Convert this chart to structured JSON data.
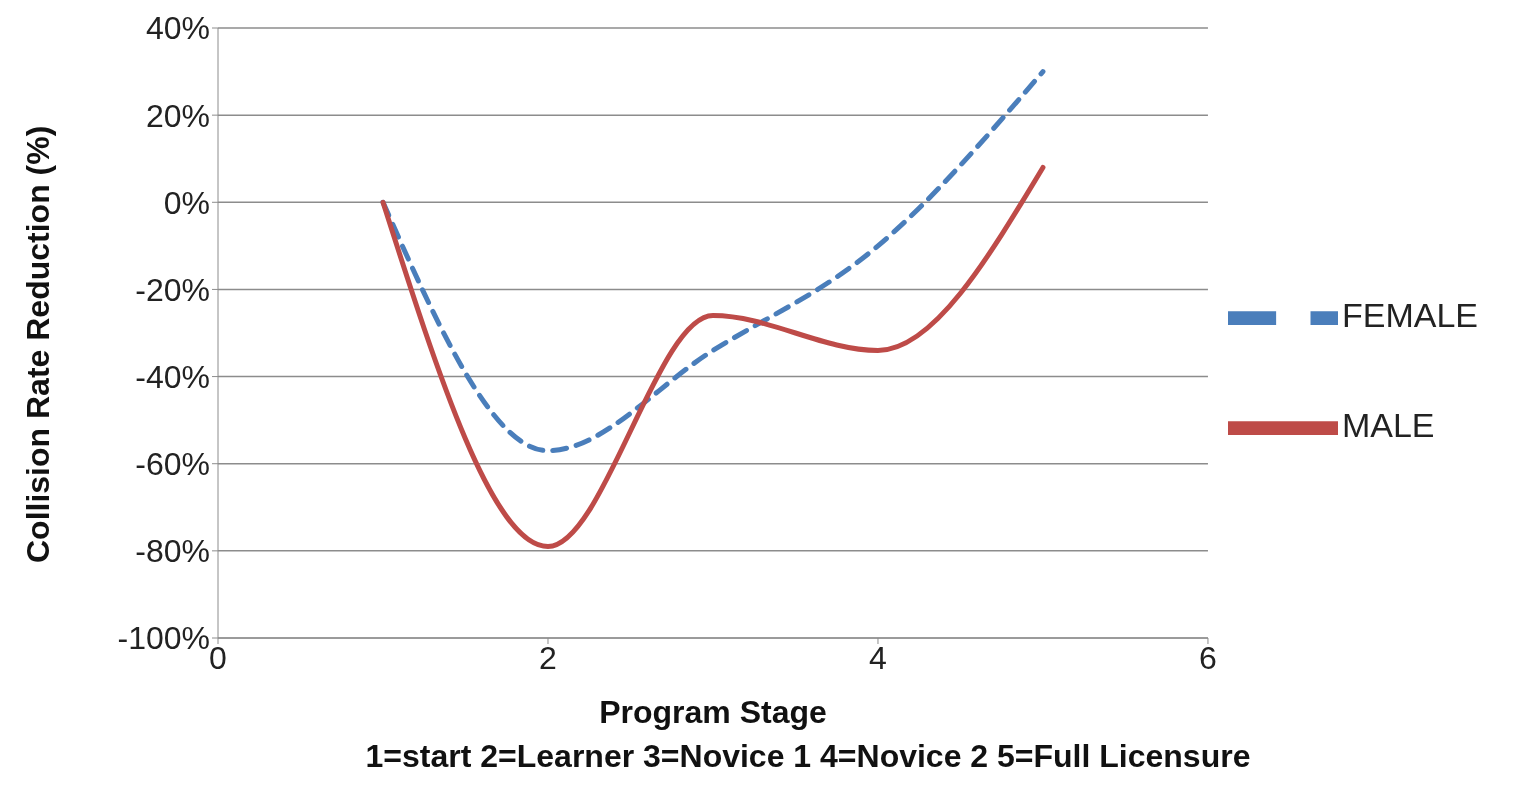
{
  "chart_data": {
    "type": "line",
    "xlabel": "Program Stage",
    "ylabel": "Collision Rate Reduction (%)",
    "x": [
      1,
      2,
      3,
      4,
      5
    ],
    "series": [
      {
        "name": "FEMALE",
        "color": "#4a7ebb",
        "line_style": "dashed",
        "values": [
          0,
          -57,
          -34,
          -10,
          30
        ]
      },
      {
        "name": "MALE",
        "color": "#be4b48",
        "line_style": "solid",
        "values": [
          0,
          -79,
          -26,
          -34,
          8
        ]
      }
    ],
    "xlim": [
      0,
      6
    ],
    "xticks": [
      0,
      2,
      4,
      6
    ],
    "ylim": [
      -100,
      40
    ],
    "yticks": [
      {
        "value": -100,
        "label": "-100%"
      },
      {
        "value": -80,
        "label": "-80%"
      },
      {
        "value": -60,
        "label": "-60%"
      },
      {
        "value": -40,
        "label": "-40%"
      },
      {
        "value": -20,
        "label": "-20%"
      },
      {
        "value": 0,
        "label": "0%"
      },
      {
        "value": 20,
        "label": "20%"
      },
      {
        "value": 40,
        "label": "40%"
      }
    ],
    "grid": "y",
    "legend": "right",
    "marker": "none",
    "annotations": [
      "1=start 2=Learner 3=Novice 1 4=Novice 2 5=Full Licensure"
    ]
  }
}
